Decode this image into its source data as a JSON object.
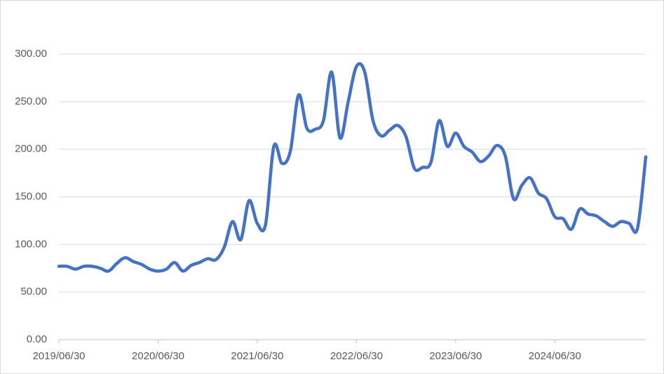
{
  "chart_data": {
    "type": "line",
    "categories": [
      "2019/06/30",
      null,
      null,
      null,
      null,
      null,
      null,
      null,
      null,
      null,
      null,
      null,
      "2020/06/30",
      null,
      null,
      null,
      null,
      null,
      null,
      null,
      null,
      null,
      null,
      null,
      "2021/06/30",
      null,
      null,
      null,
      null,
      null,
      null,
      null,
      null,
      null,
      null,
      null,
      "2022/06/30",
      null,
      null,
      null,
      null,
      null,
      null,
      null,
      null,
      null,
      null,
      null,
      "2023/06/30",
      null,
      null,
      null,
      null,
      null,
      null,
      null,
      null,
      null,
      null,
      null,
      "2024/06/30",
      null,
      null,
      null,
      null,
      null,
      null,
      null,
      null,
      null,
      null,
      null
    ],
    "series": [
      {
        "color": "#4472c4",
        "values": [
          77,
          77,
          74,
          77,
          77,
          75,
          72,
          80,
          86,
          82,
          79,
          74,
          72,
          74,
          81,
          72,
          78,
          81,
          85,
          84,
          97,
          124,
          105,
          146,
          122,
          121,
          203,
          185,
          198,
          257,
          222,
          221,
          230,
          281,
          212,
          250,
          287,
          281,
          230,
          214,
          220,
          225,
          213,
          180,
          181,
          186,
          230,
          203,
          217,
          203,
          197,
          187,
          193,
          204,
          193,
          148,
          162,
          170,
          154,
          148,
          129,
          127,
          116,
          137,
          132,
          130,
          124,
          119,
          124,
          122,
          117,
          192
        ]
      }
    ],
    "ylim": [
      0,
      300
    ],
    "yticks": [
      {
        "value": 0,
        "label": "0.00"
      },
      {
        "value": 50,
        "label": "50.00"
      },
      {
        "value": 100,
        "label": "100.00"
      },
      {
        "value": 150,
        "label": "150.00"
      },
      {
        "value": 200,
        "label": "200.00"
      },
      {
        "value": 250,
        "label": "250.00"
      },
      {
        "value": 300,
        "label": "300.00"
      }
    ],
    "grid": true
  }
}
